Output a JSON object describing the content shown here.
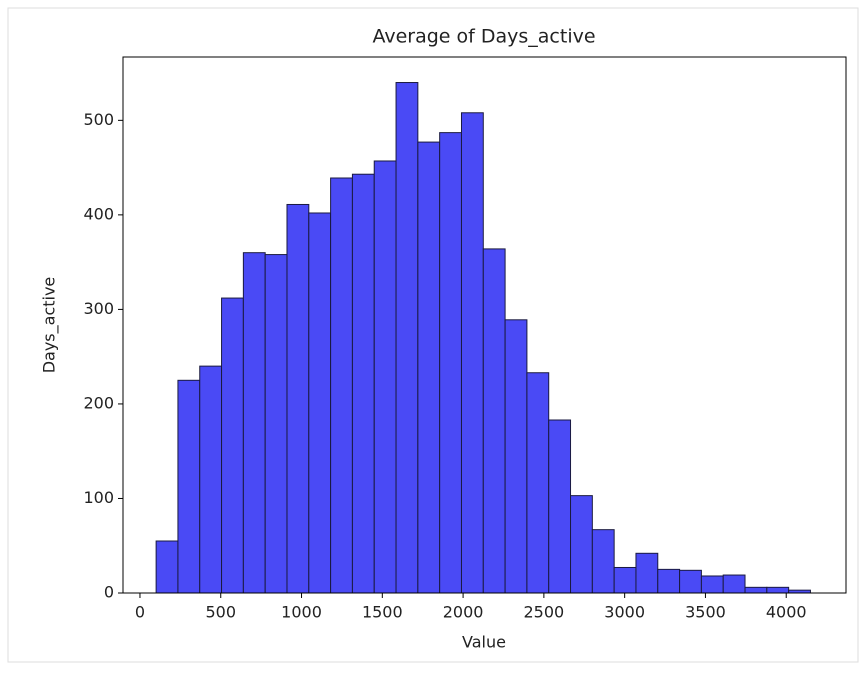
{
  "chart_data": {
    "type": "histogram",
    "title": "Average of Days_active",
    "xlabel": "Value",
    "ylabel": "Days_active",
    "bins": [
      100,
      235,
      370,
      505,
      640,
      775,
      910,
      1045,
      1180,
      1315,
      1450,
      1585,
      1720,
      1855,
      1990,
      2125,
      2260,
      2395,
      2530,
      2665,
      2800,
      2935,
      3070,
      3205,
      3340,
      3475,
      3610,
      3745,
      3880,
      4015,
      4150
    ],
    "values": [
      55,
      225,
      240,
      312,
      360,
      358,
      411,
      402,
      439,
      443,
      457,
      540,
      477,
      487,
      508,
      364,
      289,
      233,
      183,
      103,
      67,
      27,
      42,
      25,
      24,
      18,
      19,
      6,
      6,
      3
    ],
    "color": "#4a4af5",
    "edgecolor": "#1a1a40",
    "xlim": [
      -105,
      4370
    ],
    "ylim": [
      0,
      567
    ],
    "xticks": [
      0,
      500,
      1000,
      1500,
      2000,
      2500,
      3000,
      3500,
      4000
    ],
    "yticks": [
      0,
      100,
      200,
      300,
      400,
      500
    ]
  }
}
